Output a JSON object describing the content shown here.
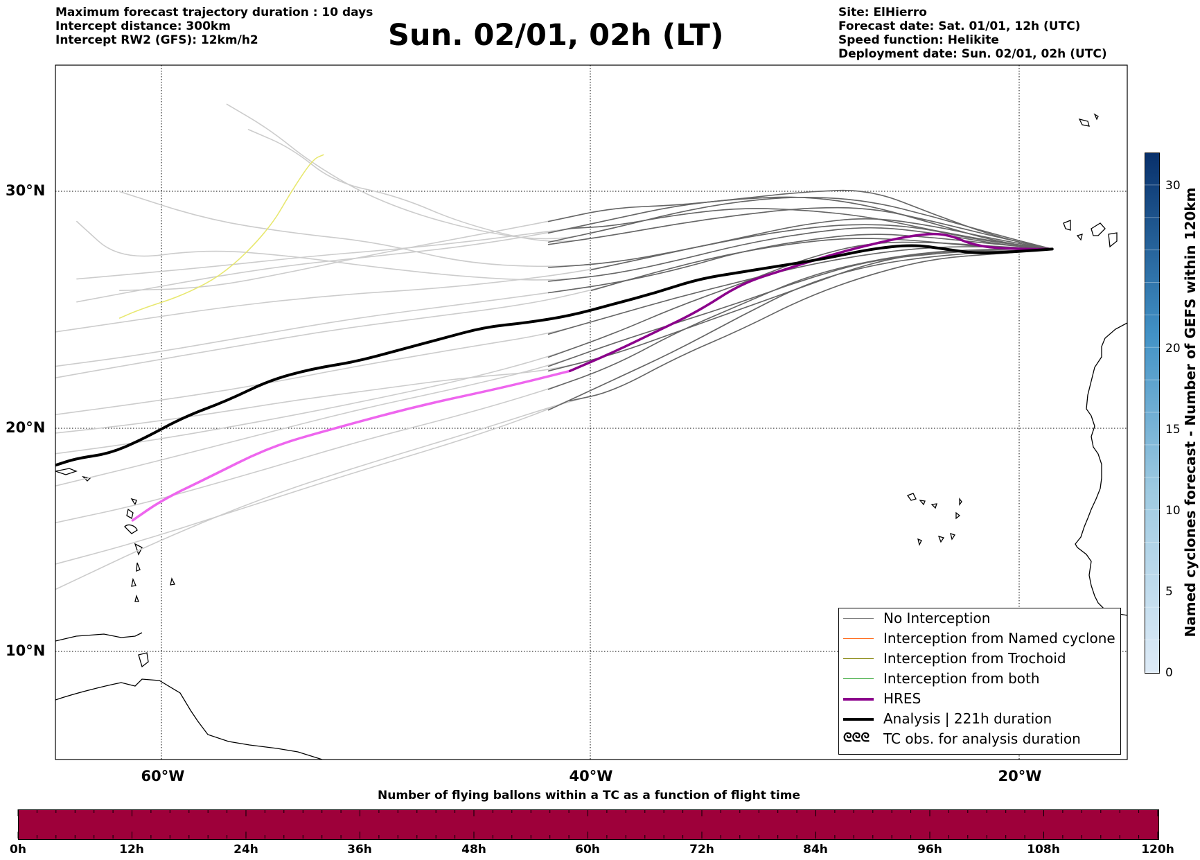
{
  "header": {
    "title": "Sun. 02/01, 02h (LT)",
    "left_lines": [
      "Maximum forecast trajectory duration : 10 days",
      "Intercept distance: 300km",
      "Intercept RW2 (GFS):  12km/h2"
    ],
    "right_lines": [
      "Site: ElHierro",
      "Forecast date: Sat. 01/01, 12h (UTC)",
      "Speed function: Helikite",
      "Deployment date: Sun. 02/01, 02h (UTC)"
    ]
  },
  "map": {
    "lat_labels": [
      "30°N",
      "20°N",
      "10°N"
    ],
    "lon_labels": [
      "60°W",
      "40°W",
      "20°W"
    ],
    "extent": {
      "lon_min": -65,
      "lon_max": -15,
      "lat_min": 5.3,
      "lat_max": 35.5
    },
    "colors": {
      "ensemble": "#666666",
      "faded": "#cccccc",
      "hres": "#8b008b",
      "hres_faded": "#ee66ee",
      "analysis": "#000000",
      "yellow": "#e8e870"
    },
    "analysis_track": [
      [
        -18.5,
        27.5
      ],
      [
        -20,
        27.4
      ],
      [
        -22,
        27.3
      ],
      [
        -23.5,
        27.5
      ],
      [
        -25,
        27.7
      ],
      [
        -27,
        27.5
      ],
      [
        -29,
        27.1
      ],
      [
        -31,
        26.8
      ],
      [
        -33,
        26.5
      ],
      [
        -35,
        26.2
      ],
      [
        -37,
        25.6
      ],
      [
        -39,
        25.1
      ],
      [
        -41,
        24.6
      ],
      [
        -43,
        24.3
      ],
      [
        -45,
        24.1
      ],
      [
        -47,
        23.6
      ],
      [
        -49,
        23.1
      ],
      [
        -51,
        22.6
      ],
      [
        -53,
        22.3
      ],
      [
        -55,
        21.8
      ],
      [
        -57,
        20.9
      ],
      [
        -59,
        20.2
      ],
      [
        -61,
        19.2
      ],
      [
        -62.5,
        18.6
      ],
      [
        -64,
        18.4
      ],
      [
        -65,
        18.1
      ]
    ],
    "hres_track": [
      [
        -18.5,
        27.5
      ],
      [
        -20,
        27.5
      ],
      [
        -22,
        27.6
      ],
      [
        -23.5,
        28.2
      ],
      [
        -25,
        28.1
      ],
      [
        -27,
        27.7
      ],
      [
        -29,
        27.2
      ],
      [
        -31,
        26.6
      ],
      [
        -33,
        26.0
      ],
      [
        -35,
        24.8
      ],
      [
        -37,
        23.9
      ],
      [
        -39,
        23.0
      ],
      [
        -41,
        22.2
      ],
      [
        -44,
        21.5
      ],
      [
        -48,
        20.7
      ],
      [
        -52,
        19.7
      ],
      [
        -55,
        18.9
      ],
      [
        -58,
        17.5
      ],
      [
        -60,
        16.6
      ],
      [
        -61.4,
        15.7
      ]
    ],
    "hres_solid_until_lon": -40.5,
    "ensemble_tracks": [
      [
        [
          -18.5,
          27.5
        ],
        [
          -22,
          27.9
        ],
        [
          -25,
          28.5
        ],
        [
          -28,
          28.6
        ],
        [
          -31,
          28.3
        ],
        [
          -34,
          27.8
        ],
        [
          -37,
          27.2
        ],
        [
          -40,
          26.6
        ],
        [
          -43,
          26.2
        ],
        [
          -47,
          25.8
        ],
        [
          -52,
          25.5
        ],
        [
          -57,
          25.0
        ],
        [
          -62,
          24.3
        ],
        [
          -65,
          23.9
        ]
      ],
      [
        [
          -18.5,
          27.5
        ],
        [
          -22,
          27.6
        ],
        [
          -25,
          27.9
        ],
        [
          -28,
          28.0
        ],
        [
          -31,
          27.7
        ],
        [
          -34,
          27.2
        ],
        [
          -37,
          26.5
        ],
        [
          -40,
          25.7
        ],
        [
          -43,
          25.1
        ],
        [
          -47,
          24.6
        ],
        [
          -52,
          24.0
        ],
        [
          -57,
          23.2
        ],
        [
          -62,
          22.4
        ],
        [
          -65,
          21.9
        ]
      ],
      [
        [
          -18.5,
          27.5
        ],
        [
          -21,
          27.8
        ],
        [
          -24,
          28.6
        ],
        [
          -27,
          29.4
        ],
        [
          -30,
          29.8
        ],
        [
          -33,
          29.7
        ],
        [
          -36,
          29.4
        ],
        [
          -39,
          28.8
        ],
        [
          -42,
          28.2
        ],
        [
          -46,
          27.6
        ],
        [
          -50,
          27.2
        ],
        [
          -55,
          26.7
        ],
        [
          -60,
          25.9
        ],
        [
          -64,
          25.2
        ]
      ],
      [
        [
          -18.5,
          27.5
        ],
        [
          -21,
          27.6
        ],
        [
          -24,
          27.8
        ],
        [
          -27,
          27.8
        ],
        [
          -30,
          27.1
        ],
        [
          -33,
          26.0
        ],
        [
          -36,
          25.0
        ],
        [
          -39,
          23.8
        ],
        [
          -42,
          22.8
        ],
        [
          -46,
          21.8
        ],
        [
          -51,
          20.8
        ],
        [
          -56,
          19.9
        ],
        [
          -61,
          19.1
        ],
        [
          -65,
          18.6
        ]
      ],
      [
        [
          -18.5,
          27.5
        ],
        [
          -21,
          27.5
        ],
        [
          -24,
          27.4
        ],
        [
          -27,
          27.0
        ],
        [
          -30,
          26.3
        ],
        [
          -33,
          25.1
        ],
        [
          -36,
          23.9
        ],
        [
          -39,
          22.4
        ],
        [
          -42,
          21.4
        ],
        [
          -46,
          20.3
        ],
        [
          -51,
          19.1
        ],
        [
          -56,
          17.7
        ],
        [
          -61,
          16.4
        ],
        [
          -65,
          15.6
        ]
      ],
      [
        [
          -18.5,
          27.5
        ],
        [
          -21,
          27.4
        ],
        [
          -24,
          27.2
        ],
        [
          -27,
          26.8
        ],
        [
          -30,
          26.0
        ],
        [
          -33,
          24.6
        ],
        [
          -36,
          23.1
        ],
        [
          -39,
          21.8
        ],
        [
          -42,
          20.5
        ],
        [
          -46,
          19.2
        ],
        [
          -51,
          17.8
        ],
        [
          -56,
          16.3
        ],
        [
          -61,
          14.8
        ],
        [
          -65,
          13.8
        ]
      ],
      [
        [
          -18.5,
          27.5
        ],
        [
          -21,
          27.3
        ],
        [
          -24,
          27.1
        ],
        [
          -27,
          26.4
        ],
        [
          -30,
          25.4
        ],
        [
          -33,
          24.0
        ],
        [
          -36,
          22.8
        ],
        [
          -39,
          21.3
        ],
        [
          -41,
          20.9
        ],
        [
          -45,
          19.7
        ],
        [
          -50,
          18.3
        ],
        [
          -55,
          16.8
        ],
        [
          -60,
          14.9
        ],
        [
          -65,
          12.7
        ]
      ],
      [
        [
          -18.5,
          27.5
        ],
        [
          -21,
          28.0
        ],
        [
          -24,
          29.0
        ],
        [
          -27,
          30.1
        ],
        [
          -30,
          30.0
        ],
        [
          -33,
          29.7
        ],
        [
          -36,
          29.4
        ],
        [
          -39,
          29.3
        ],
        [
          -42,
          28.7
        ],
        [
          -46,
          28.0
        ],
        [
          -50,
          27.3
        ],
        [
          -54,
          26.5
        ],
        [
          -58,
          25.8
        ],
        [
          -62,
          25.7
        ]
      ],
      [
        [
          -18.5,
          27.5
        ],
        [
          -21,
          27.8
        ],
        [
          -24,
          28.3
        ],
        [
          -27,
          28.9
        ],
        [
          -30,
          29.2
        ],
        [
          -33,
          29.3
        ],
        [
          -36,
          29.0
        ],
        [
          -39,
          28.5
        ],
        [
          -41,
          28.4
        ],
        [
          -45,
          27.9
        ],
        [
          -49,
          27.5
        ],
        [
          -53,
          27.2
        ],
        [
          -58,
          26.7
        ],
        [
          -64,
          26.2
        ]
      ],
      [
        [
          -18.5,
          27.5
        ],
        [
          -21,
          27.7
        ],
        [
          -24,
          28.0
        ],
        [
          -27,
          28.2
        ],
        [
          -30,
          27.9
        ],
        [
          -33,
          27.4
        ],
        [
          -36,
          26.6
        ],
        [
          -39,
          26.0
        ],
        [
          -42,
          25.6
        ],
        [
          -46,
          25.1
        ],
        [
          -51,
          24.5
        ],
        [
          -56,
          23.7
        ],
        [
          -61,
          22.9
        ],
        [
          -65,
          22.4
        ]
      ],
      [
        [
          -18.5,
          27.5
        ],
        [
          -21,
          27.6
        ],
        [
          -24,
          27.6
        ],
        [
          -27,
          27.3
        ],
        [
          -30,
          26.8
        ],
        [
          -33,
          26.1
        ],
        [
          -36,
          25.4
        ],
        [
          -39,
          24.6
        ],
        [
          -42,
          23.8
        ],
        [
          -46,
          23.2
        ],
        [
          -51,
          22.4
        ],
        [
          -56,
          21.5
        ],
        [
          -61,
          20.8
        ],
        [
          -65,
          20.3
        ]
      ],
      [
        [
          -18.5,
          27.5
        ],
        [
          -21,
          27.5
        ],
        [
          -24,
          27.3
        ],
        [
          -27,
          27.0
        ],
        [
          -30,
          26.2
        ],
        [
          -33,
          25.2
        ],
        [
          -36,
          24.3
        ],
        [
          -39,
          23.4
        ],
        [
          -42,
          22.4
        ],
        [
          -46,
          21.5
        ],
        [
          -51,
          20.5
        ],
        [
          -56,
          19.3
        ],
        [
          -61,
          18.1
        ],
        [
          -65,
          17.2
        ]
      ],
      [
        [
          -18.5,
          27.5
        ],
        [
          -21,
          28.1
        ],
        [
          -24,
          28.9
        ],
        [
          -27,
          29.6
        ],
        [
          -30,
          29.8
        ],
        [
          -33,
          29.6
        ],
        [
          -36,
          29.1
        ],
        [
          -39,
          28.4
        ],
        [
          -42,
          27.8
        ],
        [
          -46,
          28.4
        ],
        [
          -50,
          29.6
        ],
        [
          -53,
          31.2
        ],
        [
          -55,
          32.7
        ],
        [
          -57,
          33.8
        ]
      ],
      [
        [
          -18.5,
          27.5
        ],
        [
          -21,
          28.0
        ],
        [
          -24,
          28.7
        ],
        [
          -27,
          29.3
        ],
        [
          -30,
          29.3
        ],
        [
          -33,
          29.0
        ],
        [
          -36,
          28.6
        ],
        [
          -39,
          28.1
        ],
        [
          -42,
          27.7
        ],
        [
          -46,
          28.6
        ],
        [
          -49,
          29.8
        ],
        [
          -52,
          30.4
        ],
        [
          -54,
          31.9
        ],
        [
          -56,
          32.7
        ]
      ],
      [
        [
          -18.5,
          27.5
        ],
        [
          -21,
          27.9
        ],
        [
          -24,
          28.5
        ],
        [
          -27,
          28.9
        ],
        [
          -30,
          28.6
        ],
        [
          -33,
          28.0
        ],
        [
          -36,
          27.4
        ],
        [
          -39,
          26.9
        ],
        [
          -42,
          26.7
        ],
        [
          -46,
          26.9
        ],
        [
          -50,
          27.8
        ],
        [
          -54,
          28.2
        ],
        [
          -58,
          28.8
        ],
        [
          -62,
          30.0
        ]
      ],
      [
        [
          -18.5,
          27.5
        ],
        [
          -21,
          27.7
        ],
        [
          -24,
          28.2
        ],
        [
          -27,
          28.5
        ],
        [
          -30,
          28.2
        ],
        [
          -33,
          27.7
        ],
        [
          -36,
          27.0
        ],
        [
          -39,
          26.4
        ],
        [
          -42,
          26.1
        ],
        [
          -46,
          26.3
        ],
        [
          -50,
          26.7
        ],
        [
          -54,
          27.2
        ],
        [
          -58,
          27.5
        ],
        [
          -62,
          27.0
        ],
        [
          -64,
          28.7
        ]
      ],
      [
        [
          -18.5,
          27.5
        ],
        [
          -21,
          27.4
        ],
        [
          -24,
          27.4
        ],
        [
          -27,
          26.9
        ],
        [
          -30,
          25.9
        ],
        [
          -33,
          24.9
        ],
        [
          -36,
          23.9
        ],
        [
          -39,
          22.9
        ],
        [
          -42,
          22.2
        ],
        [
          -46,
          21.9
        ],
        [
          -50,
          21.4
        ],
        [
          -54,
          20.9
        ],
        [
          -58,
          20.3
        ],
        [
          -62,
          19.8
        ],
        [
          -65,
          19.5
        ]
      ]
    ],
    "yellow_track": [
      [
        -52.5,
        31.6
      ],
      [
        -53,
        31.4
      ],
      [
        -54,
        30.0
      ],
      [
        -55,
        28.4
      ],
      [
        -57,
        26.5
      ],
      [
        -59,
        25.5
      ],
      [
        -61,
        24.9
      ],
      [
        -62,
        24.5
      ]
    ]
  },
  "legend": {
    "items": [
      {
        "label": "No Interception",
        "color": "#808080",
        "width": 1.5
      },
      {
        "label": "Interception from Named cyclone",
        "color": "#ff6a1a",
        "width": 1.5
      },
      {
        "label": "Interception from Trochoid",
        "color": "#808000",
        "width": 1.5
      },
      {
        "label": "Interception from both",
        "color": "#1a9a1a",
        "width": 1.5
      },
      {
        "label": "HRES",
        "color": "#8b008b",
        "width": 4
      },
      {
        "label": "Analysis | 221h duration",
        "color": "#000000",
        "width": 4
      },
      {
        "label": "TC obs. for analysis duration",
        "color": "",
        "width": 0
      }
    ],
    "tc_symbol": "ᘓᘓᘓ"
  },
  "right_colorbar": {
    "label": "Named cyclones forecast - Number of GEFS within 120km",
    "ticks": [
      "0",
      "5",
      "10",
      "15",
      "20",
      "30"
    ],
    "tick_values": [
      0,
      5,
      10,
      15,
      20,
      30
    ],
    "range": [
      0,
      32
    ]
  },
  "bottom_colorbar": {
    "title": "Number of flying ballons within a TC as a function of flight time",
    "ticks": [
      "0h",
      "12h",
      "24h",
      "36h",
      "48h",
      "60h",
      "72h",
      "84h",
      "96h",
      "108h",
      "120h"
    ],
    "color": "#9e003a"
  }
}
